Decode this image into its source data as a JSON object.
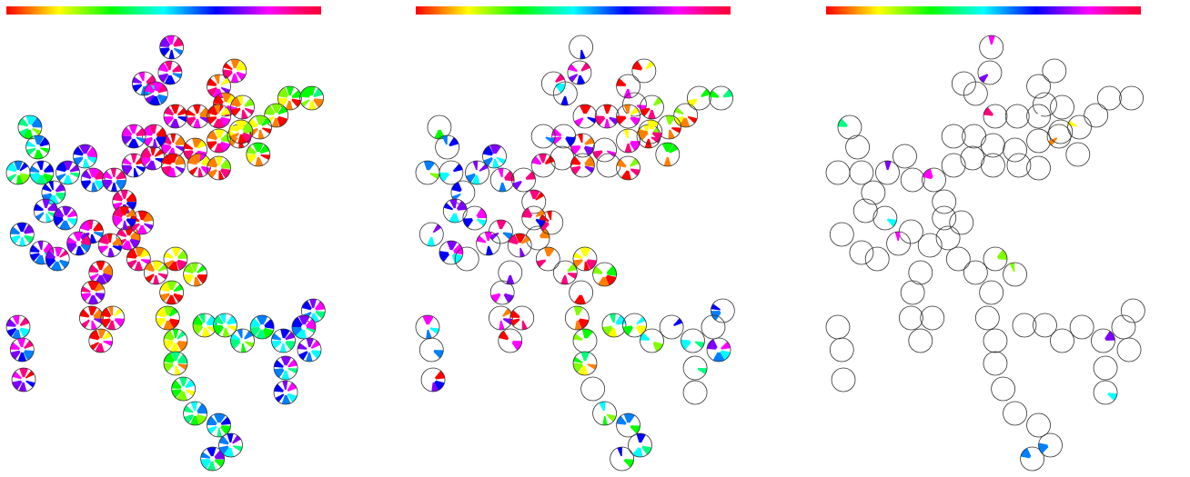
{
  "colorbar": {
    "stops": [
      "#ff0000",
      "#ff7f00",
      "#ffff00",
      "#7fff00",
      "#00ff00",
      "#00ff7f",
      "#00ffff",
      "#007fff",
      "#0000ff",
      "#7f00ff",
      "#ff00ff",
      "#ff007f",
      "#ff0033"
    ]
  },
  "panels": [
    {
      "name": "panel-full",
      "density": 1.0
    },
    {
      "name": "panel-mid",
      "density": 0.42
    },
    {
      "name": "panel-sparse",
      "density": 0.06
    }
  ],
  "circle_stroke": "#333333"
}
